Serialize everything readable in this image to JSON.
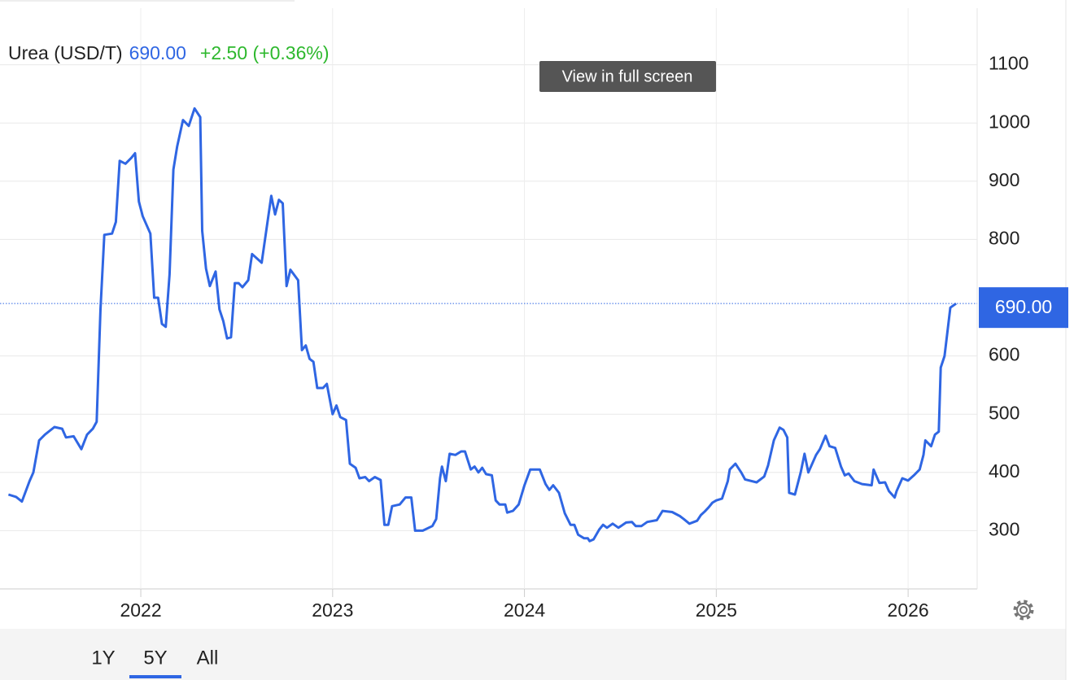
{
  "chart_data": {
    "type": "line",
    "title": "Urea (USD/T)",
    "price": "690.00",
    "change": "+2.50 (+0.36%)",
    "tooltip": "View in full screen",
    "ranges": [
      "1Y",
      "5Y",
      "All"
    ],
    "active_range": "5Y",
    "x": [
      2021.31,
      2021.35,
      2021.38,
      2021.42,
      2021.44,
      2021.47,
      2021.5,
      2021.55,
      2021.59,
      2021.61,
      2021.65,
      2021.69,
      2021.72,
      2021.75,
      2021.77,
      2021.79,
      2021.81,
      2021.85,
      2021.87,
      2021.89,
      2021.92,
      2021.95,
      2021.97,
      2021.99,
      2022.01,
      2022.05,
      2022.07,
      2022.09,
      2022.11,
      2022.13,
      2022.15,
      2022.17,
      2022.19,
      2022.22,
      2022.25,
      2022.28,
      2022.31,
      2022.32,
      2022.34,
      2022.36,
      2022.39,
      2022.41,
      2022.43,
      2022.45,
      2022.47,
      2022.49,
      2022.51,
      2022.53,
      2022.56,
      2022.58,
      2022.63,
      2022.68,
      2022.7,
      2022.72,
      2022.74,
      2022.76,
      2022.78,
      2022.82,
      2022.84,
      2022.86,
      2022.88,
      2022.9,
      2022.92,
      2022.95,
      2022.97,
      2023.0,
      2023.02,
      2023.04,
      2023.07,
      2023.09,
      2023.12,
      2023.14,
      2023.17,
      2023.19,
      2023.22,
      2023.25,
      2023.27,
      2023.29,
      2023.31,
      2023.35,
      2023.38,
      2023.41,
      2023.43,
      2023.47,
      2023.52,
      2023.54,
      2023.56,
      2023.57,
      2023.59,
      2023.61,
      2023.64,
      2023.67,
      2023.69,
      2023.72,
      2023.74,
      2023.76,
      2023.78,
      2023.8,
      2023.83,
      2023.85,
      2023.87,
      2023.9,
      2023.91,
      2023.94,
      2023.97,
      2024.0,
      2024.03,
      2024.08,
      2024.11,
      2024.13,
      2024.15,
      2024.18,
      2024.21,
      2024.24,
      2024.26,
      2024.28,
      2024.31,
      2024.33,
      2024.34,
      2024.36,
      2024.39,
      2024.41,
      2024.43,
      2024.46,
      2024.49,
      2024.53,
      2024.56,
      2024.58,
      2024.61,
      2024.64,
      2024.69,
      2024.72,
      2024.77,
      2024.81,
      2024.83,
      2024.86,
      2024.9,
      2024.92,
      2024.94,
      2024.96,
      2024.98,
      2025.0,
      2025.03,
      2025.06,
      2025.07,
      2025.1,
      2025.13,
      2025.15,
      2025.21,
      2025.25,
      2025.27,
      2025.3,
      2025.33,
      2025.35,
      2025.37,
      2025.38,
      2025.41,
      2025.44,
      2025.46,
      2025.48,
      2025.52,
      2025.54,
      2025.57,
      2025.59,
      2025.62,
      2025.65,
      2025.67,
      2025.69,
      2025.72,
      2025.76,
      2025.81,
      2025.82,
      2025.85,
      2025.88,
      2025.9,
      2025.93,
      2025.94,
      2025.97,
      2026.0,
      2026.03,
      2026.06,
      2026.08,
      2026.09,
      2026.12,
      2026.14,
      2026.16,
      2026.17,
      2026.19,
      2026.22,
      2026.25
    ],
    "series": [
      {
        "name": "Urea",
        "color": "#2f66e3",
        "values": [
          362,
          358,
          350,
          385,
          400,
          455,
          465,
          478,
          475,
          460,
          462,
          440,
          465,
          475,
          487,
          680,
          808,
          810,
          830,
          935,
          930,
          940,
          948,
          865,
          840,
          810,
          700,
          700,
          655,
          650,
          740,
          920,
          960,
          1005,
          995,
          1025,
          1010,
          815,
          750,
          720,
          745,
          680,
          660,
          630,
          632,
          725,
          725,
          718,
          730,
          775,
          760,
          875,
          843,
          868,
          862,
          720,
          748,
          730,
          610,
          618,
          595,
          590,
          545,
          545,
          552,
          500,
          515,
          495,
          490,
          415,
          408,
          390,
          392,
          385,
          392,
          387,
          310,
          310,
          342,
          345,
          357,
          357,
          300,
          300,
          308,
          320,
          390,
          410,
          385,
          432,
          430,
          436,
          436,
          405,
          410,
          400,
          408,
          397,
          395,
          352,
          345,
          345,
          331,
          334,
          345,
          378,
          405,
          405,
          380,
          370,
          378,
          365,
          330,
          310,
          310,
          293,
          287,
          287,
          282,
          285,
          302,
          310,
          305,
          312,
          305,
          314,
          315,
          308,
          308,
          315,
          318,
          334,
          332,
          325,
          320,
          312,
          317,
          327,
          333,
          340,
          348,
          352,
          355,
          385,
          405,
          415,
          400,
          388,
          383,
          393,
          412,
          455,
          477,
          473,
          460,
          365,
          362,
          400,
          432,
          400,
          430,
          440,
          463,
          445,
          442,
          410,
          395,
          398,
          385,
          380,
          378,
          405,
          382,
          383,
          368,
          357,
          368,
          390,
          386,
          395,
          405,
          430,
          455,
          445,
          465,
          470,
          580,
          600,
          683,
          690
        ]
      }
    ],
    "xlim": [
      2021.3,
      2026.36
    ],
    "xticks": [
      2022,
      2023,
      2024,
      2025,
      2026
    ],
    "ylim": [
      200,
      1200
    ],
    "yticks": [
      300,
      400,
      500,
      600,
      800,
      900,
      1000,
      1100
    ],
    "grid": true
  }
}
